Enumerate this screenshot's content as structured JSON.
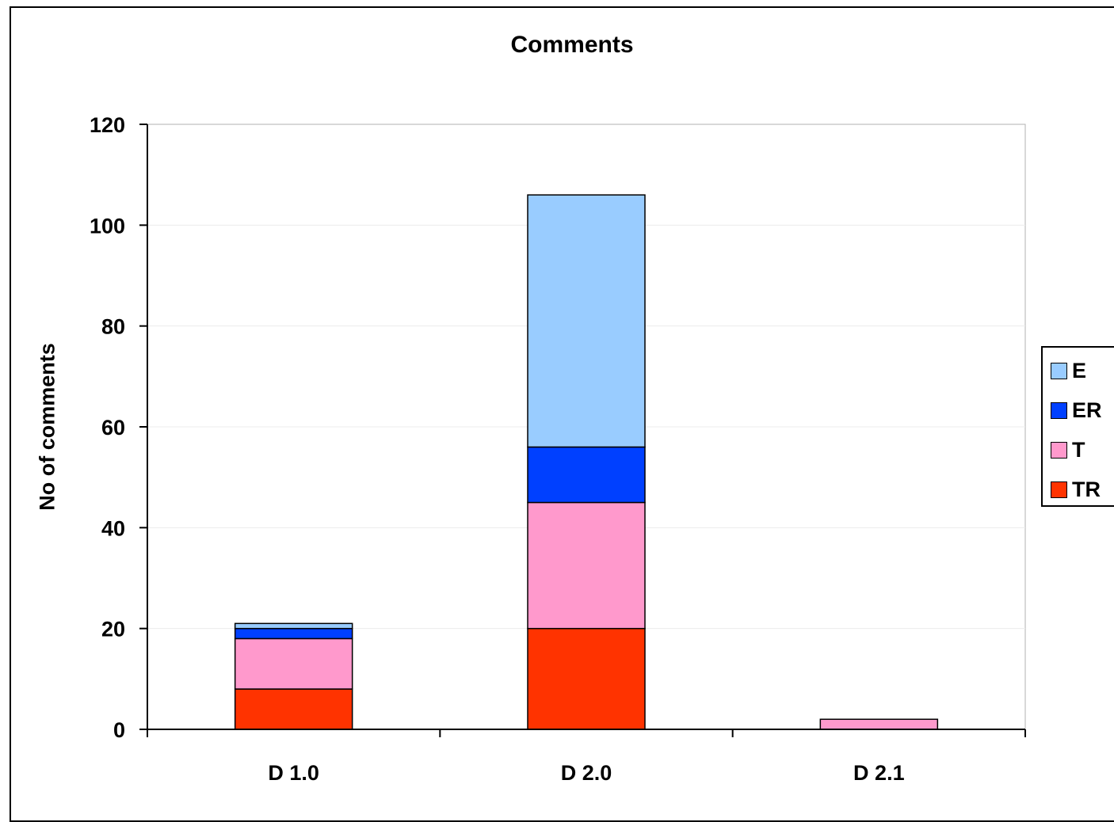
{
  "chart_data": {
    "type": "bar",
    "stacked": true,
    "title": "Comments",
    "xlabel": "",
    "ylabel": "No of comments",
    "ylim": [
      0,
      120
    ],
    "yticks": [
      0,
      20,
      40,
      60,
      80,
      100,
      120
    ],
    "categories": [
      "D 1.0",
      "D 2.0",
      "D 2.1"
    ],
    "series": [
      {
        "name": "TR",
        "color": "#FF3300",
        "values": [
          8,
          20,
          0
        ]
      },
      {
        "name": "T",
        "color": "#FF99CC",
        "values": [
          10,
          25,
          2
        ]
      },
      {
        "name": "ER",
        "color": "#0040FF",
        "values": [
          2,
          11,
          0
        ]
      },
      {
        "name": "E",
        "color": "#99CCFF",
        "values": [
          1,
          50,
          0
        ]
      }
    ],
    "legend": {
      "position": "right",
      "order": [
        "E",
        "ER",
        "T",
        "TR"
      ]
    },
    "grid": {
      "horizontal": true,
      "vertical": false
    },
    "plot_background": "#FFFFFF"
  }
}
